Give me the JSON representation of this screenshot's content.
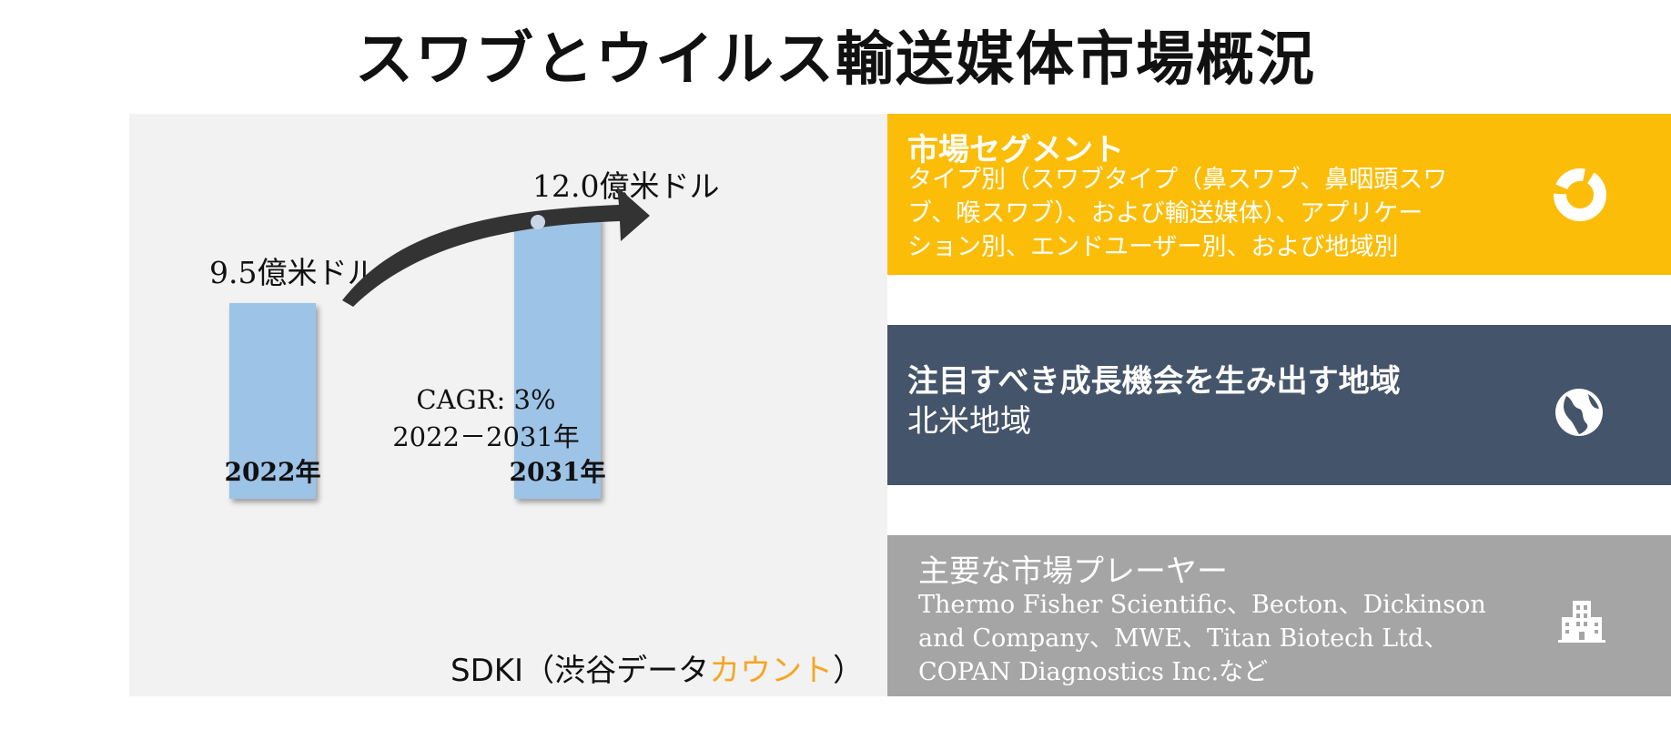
{
  "title": "スワブとウイルス輸送媒体市場概況",
  "chart_data": {
    "type": "bar",
    "categories": [
      "2022年",
      "2031年"
    ],
    "values": [
      9.5,
      12.0
    ],
    "value_labels": [
      "9.5億米ドル",
      "12.0億米ドル"
    ],
    "unit": "億米ドル",
    "cagr_line1": "CAGR: 3%",
    "cagr_line2": "2022－2031年",
    "bar_color": "#9dc3e6",
    "arrow_color": "#333333"
  },
  "source": {
    "prefix": "SDKI（渋谷データ",
    "accent": "カウント",
    "suffix": "）",
    "accent_color": "#f5a623"
  },
  "segments": {
    "heading": "市場セグメント",
    "line1": "タイプ別（スワブタイプ（鼻スワブ、鼻咽頭スワ",
    "line2": "ブ、喉スワブ）、および輸送媒体）、アプリケー",
    "line3": "ション別、エンドユーザー別、および地域別",
    "icon": "donut-chart-icon",
    "color": "#fbbd08"
  },
  "region": {
    "heading": "注目すべき成長機会を生み出す地域",
    "value": "北米地域",
    "icon": "globe-icon",
    "color": "#44546a"
  },
  "players": {
    "heading": "主要な市場プレーヤー",
    "line1": "Thermo Fisher Scientific、Becton、Dickinson",
    "line2": "and Company、MWE、Titan Biotech Ltd、",
    "line3": "COPAN Diagnostics Inc.など",
    "icon": "building-icon",
    "color": "#a5a5a5"
  }
}
